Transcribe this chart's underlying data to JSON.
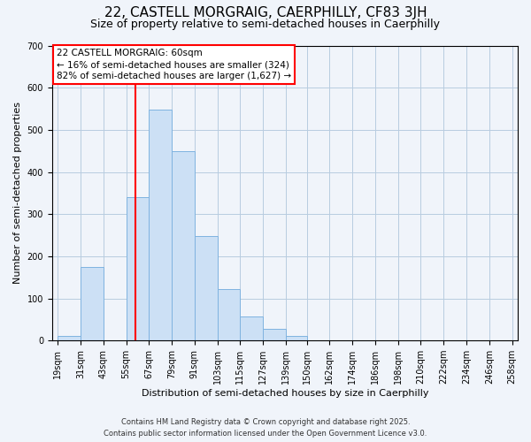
{
  "title": "22, CASTELL MORGRAIG, CAERPHILLY, CF83 3JH",
  "subtitle": "Size of property relative to semi-detached houses in Caerphilly",
  "xlabel": "Distribution of semi-detached houses by size in Caerphilly",
  "ylabel": "Number of semi-detached properties",
  "bin_edges": [
    19,
    31,
    43,
    55,
    67,
    79,
    91,
    103,
    115,
    127,
    139,
    150,
    162,
    174,
    186,
    198,
    210,
    222,
    234,
    246,
    258
  ],
  "bin_counts": [
    10,
    175,
    0,
    340,
    548,
    450,
    247,
    123,
    57,
    27,
    10,
    0,
    0,
    0,
    0,
    0,
    0,
    0,
    0,
    0
  ],
  "bar_color": "#cce0f5",
  "bar_edge_color": "#7fb3e0",
  "property_line_x": 60,
  "annotation_title": "22 CASTELL MORGRAIG: 60sqm",
  "annotation_line1": "← 16% of semi-detached houses are smaller (324)",
  "annotation_line2": "82% of semi-detached houses are larger (1,627) →",
  "annotation_box_color": "white",
  "annotation_box_edge_color": "red",
  "vline_color": "red",
  "ylim": [
    0,
    700
  ],
  "yticks": [
    0,
    100,
    200,
    300,
    400,
    500,
    600,
    700
  ],
  "xtick_labels": [
    "19sqm",
    "31sqm",
    "43sqm",
    "55sqm",
    "67sqm",
    "79sqm",
    "91sqm",
    "103sqm",
    "115sqm",
    "127sqm",
    "139sqm",
    "150sqm",
    "162sqm",
    "174sqm",
    "186sqm",
    "198sqm",
    "210sqm",
    "222sqm",
    "234sqm",
    "246sqm",
    "258sqm"
  ],
  "footer_line1": "Contains HM Land Registry data © Crown copyright and database right 2025.",
  "footer_line2": "Contains public sector information licensed under the Open Government Licence v3.0.",
  "background_color": "#f0f4fa",
  "grid_color": "#b8cce0",
  "title_fontsize": 11,
  "subtitle_fontsize": 9,
  "axis_label_fontsize": 8,
  "tick_fontsize": 7,
  "annotation_fontsize": 7.5,
  "footer_fontsize": 6
}
